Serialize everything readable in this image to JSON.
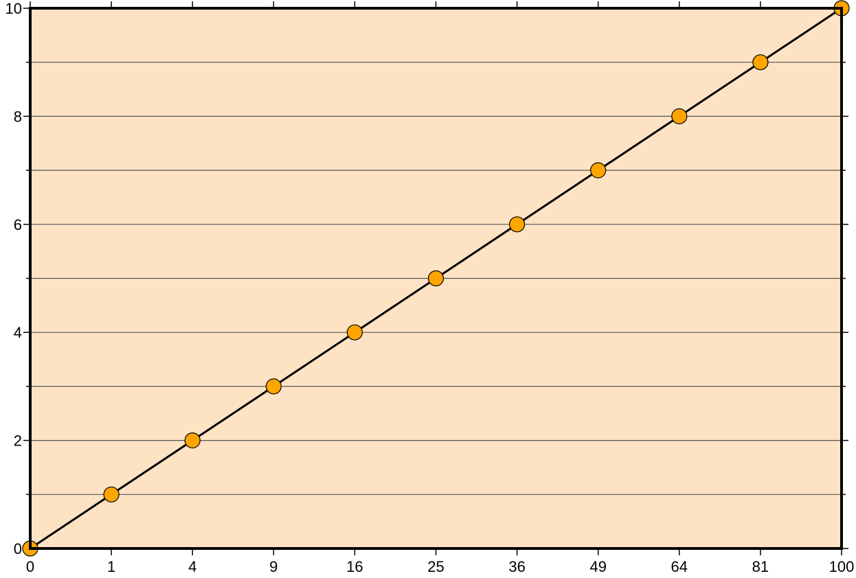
{
  "chart_data": {
    "type": "line",
    "x_scale": "sqrt",
    "title": "",
    "xlabel": "",
    "ylabel": "",
    "xlim": [
      0,
      100
    ],
    "ylim": [
      0,
      10
    ],
    "x_ticks": [
      0,
      1,
      4,
      9,
      16,
      25,
      36,
      49,
      64,
      81,
      100
    ],
    "x_tick_labels": [
      "0",
      "1",
      "4",
      "9",
      "16",
      "25",
      "36",
      "49",
      "64",
      "81",
      "100"
    ],
    "y_ticks": [
      0,
      2,
      4,
      6,
      8,
      10
    ],
    "y_tick_labels": [
      "0",
      "2",
      "4",
      "6",
      "8",
      "10"
    ],
    "y_minor_step": 1,
    "grid": "horizontal every 1",
    "series": [
      {
        "x": [
          0,
          1,
          4,
          9,
          16,
          25,
          36,
          49,
          64,
          81,
          100
        ],
        "y": [
          0,
          1,
          2,
          3,
          4,
          5,
          6,
          7,
          8,
          9,
          10
        ],
        "line_color": "#000000",
        "marker": "circle",
        "marker_color": "#ffa500"
      }
    ],
    "background_color": "#fde3c4"
  }
}
